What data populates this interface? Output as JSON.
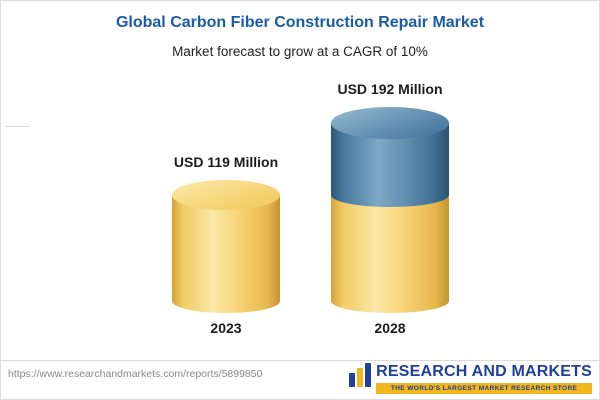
{
  "chart_data": {
    "type": "bar",
    "style": "3d-cylinder",
    "title": "Global Carbon Fiber Construction Repair Market",
    "subtitle": "Market forecast to grow at a CAGR of 10%",
    "categories": [
      "2023",
      "2028"
    ],
    "values": [
      119,
      192
    ],
    "unit": "USD Million",
    "value_labels": [
      "USD 119 Million",
      "USD 192 Million"
    ],
    "legend_position": "none",
    "grid": "off",
    "colors": {
      "title_text": "#1A5CA8",
      "bar_2023": "#F5CE6A",
      "bar_2028_growth_segment": "#5586AB",
      "label_text": "#1C1C1C"
    }
  },
  "footer": {
    "source_url": "https://www.researchandmarkets.com/reports/5899850",
    "brand_name": "RESEARCH AND MARKETS",
    "brand_tagline": "THE WORLD'S LARGEST MARKET RESEARCH STORE"
  }
}
